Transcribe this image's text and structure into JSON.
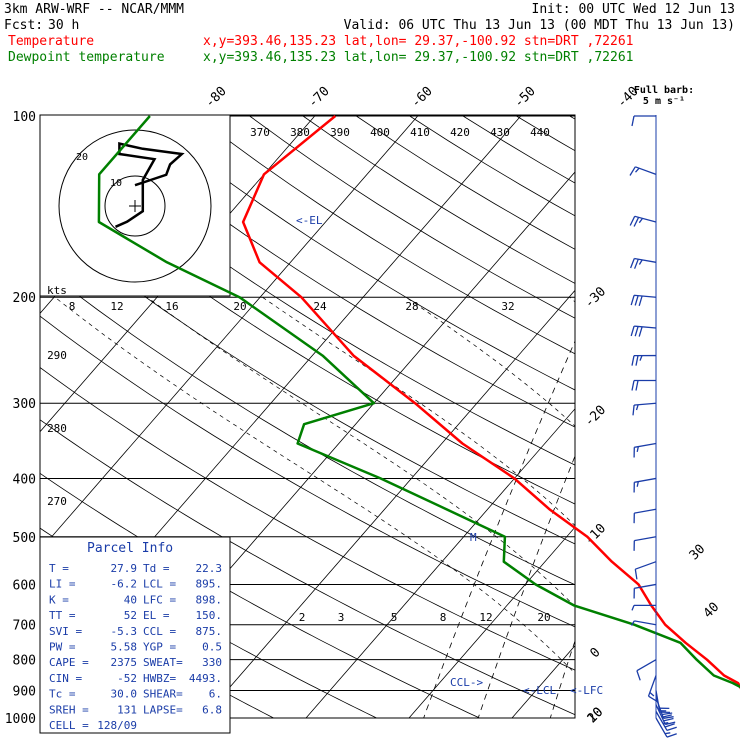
{
  "header": {
    "model": "3km ARW-WRF -- NCAR/MMM",
    "init": "Init: 00 UTC Wed 12 Jun 13",
    "fcst_label": "Fcst:",
    "fcst_value": "30 h",
    "valid": "Valid: 06 UTC Thu 13 Jun 13 (00 MDT Thu 13 Jun 13)"
  },
  "legend": [
    {
      "label": "Temperature",
      "info": "x,y=393.46,135.23   lat,lon= 29.37,-100.92  stn=DRT ,72261",
      "color": "#ff0000"
    },
    {
      "label": "Dewpoint temperature",
      "info": "x,y=393.46,135.23   lat,lon= 29.37,-100.92  stn=DRT ,72261",
      "color": "#008000"
    }
  ],
  "barb_key": {
    "line1": "Full barb:",
    "line2": "5 m s⁻¹"
  },
  "hodograph": {
    "units": "kts",
    "ring_labels": [
      "10",
      "20"
    ]
  },
  "parcel_info": {
    "title": "Parcel Info",
    "rows": [
      [
        "T  =",
        "27.9",
        "Td =",
        "22.3"
      ],
      [
        "LI =",
        "-6.2",
        "LCL =",
        "895."
      ],
      [
        "K  =",
        "40",
        "LFC =",
        "898."
      ],
      [
        "TT =",
        "52",
        "EL  =",
        "150."
      ],
      [
        "SVI =",
        "-5.3",
        "CCL =",
        "875."
      ],
      [
        "PW =",
        "5.58",
        "YGP =",
        "0.5"
      ],
      [
        "CAPE =",
        "2375",
        "SWEAT=",
        "330"
      ],
      [
        "CIN =",
        "-52",
        "HWBZ=",
        "4493."
      ],
      [
        "Tc =",
        "30.0",
        "SHEAR=",
        "6."
      ],
      [
        "SREH =",
        "131",
        "LAPSE=",
        "6.8"
      ],
      [
        "CELL =",
        "128/09",
        "",
        ""
      ]
    ]
  },
  "level_markers": {
    "el": "<-EL",
    "ccl": "CCL->",
    "lcl": "<-LCL",
    "lfc": "<-LFC",
    "m": "M"
  },
  "chart_data": {
    "type": "line",
    "title": "",
    "xlabel": "",
    "ylabel": "",
    "pressure_levels": [
      100,
      200,
      300,
      400,
      500,
      600,
      700,
      800,
      900,
      1000
    ],
    "pressure_tick_labels": [
      "100",
      "200",
      "300",
      "400",
      "500",
      "600",
      "700",
      "800",
      "900",
      "1000"
    ],
    "isotherm_labels_top": [
      "-80",
      "-70",
      "-60",
      "-50",
      "-40"
    ],
    "isotherm_labels_right": [
      "-30",
      "-20",
      "-10",
      "0",
      "10",
      "20",
      "30",
      "40"
    ],
    "theta_e_labels": [
      "370",
      "380",
      "390",
      "400",
      "410",
      "420",
      "430",
      "440"
    ],
    "mixing_ratio_labels_upper": [
      "8",
      "12",
      "16",
      "20",
      "24",
      "28",
      "32"
    ],
    "mixing_ratio_labels_lower": [
      "2",
      "3",
      "5",
      "8",
      "12",
      "20"
    ],
    "theta_labels_left": [
      "290",
      "280",
      "270"
    ],
    "series": [
      {
        "name": "Temperature",
        "color": "#ff0000",
        "p": [
          1000,
          950,
          925,
          900,
          875,
          850,
          800,
          750,
          700,
          650,
          600,
          550,
          500,
          450,
          400,
          350,
          300,
          250,
          200,
          175,
          150,
          125,
          100
        ],
        "t": [
          28.5,
          23.5,
          21,
          20,
          19,
          17,
          14,
          10.5,
          7,
          4,
          1,
          -3.5,
          -8,
          -14,
          -20,
          -28,
          -36,
          -46,
          -56,
          -63,
          -68,
          -70,
          -68
        ]
      },
      {
        "name": "Dewpoint temperature",
        "color": "#008000",
        "p": [
          1000,
          950,
          925,
          900,
          875,
          850,
          800,
          750,
          700,
          650,
          600,
          550,
          500,
          450,
          400,
          350,
          325,
          300,
          250,
          200,
          175,
          150,
          125,
          100
        ],
        "t": [
          22.5,
          21.5,
          21.5,
          20.5,
          18.5,
          16,
          13,
          10,
          4,
          -3.5,
          -9,
          -14,
          -16,
          -24,
          -33,
          -44,
          -45,
          -40,
          -49,
          -62,
          -72,
          -82,
          -86,
          -86
        ]
      }
    ],
    "wind_barbs": [
      {
        "p": 1000,
        "dir": 150,
        "speed_ms": 8
      },
      {
        "p": 975,
        "dir": 150,
        "speed_ms": 12
      },
      {
        "p": 950,
        "dir": 155,
        "speed_ms": 14
      },
      {
        "p": 925,
        "dir": 160,
        "speed_ms": 13
      },
      {
        "p": 900,
        "dir": 170,
        "speed_ms": 10
      },
      {
        "p": 850,
        "dir": 200,
        "speed_ms": 7
      },
      {
        "p": 800,
        "dir": 240,
        "speed_ms": 5
      },
      {
        "p": 700,
        "dir": 280,
        "speed_ms": 3
      },
      {
        "p": 650,
        "dir": 270,
        "speed_ms": 3
      },
      {
        "p": 600,
        "dir": 260,
        "speed_ms": 5
      },
      {
        "p": 550,
        "dir": 250,
        "speed_ms": 5
      },
      {
        "p": 500,
        "dir": 260,
        "speed_ms": 5
      },
      {
        "p": 450,
        "dir": 260,
        "speed_ms": 5
      },
      {
        "p": 400,
        "dir": 260,
        "speed_ms": 8
      },
      {
        "p": 350,
        "dir": 260,
        "speed_ms": 8
      },
      {
        "p": 300,
        "dir": 265,
        "speed_ms": 8
      },
      {
        "p": 275,
        "dir": 270,
        "speed_ms": 10
      },
      {
        "p": 250,
        "dir": 270,
        "speed_ms": 13
      },
      {
        "p": 225,
        "dir": 275,
        "speed_ms": 14
      },
      {
        "p": 200,
        "dir": 275,
        "speed_ms": 14
      },
      {
        "p": 175,
        "dir": 280,
        "speed_ms": 13
      },
      {
        "p": 150,
        "dir": 285,
        "speed_ms": 12
      },
      {
        "p": 125,
        "dir": 290,
        "speed_ms": 8
      },
      {
        "p": 100,
        "dir": 270,
        "speed_ms": 5
      }
    ],
    "hodograph_trace": [
      [
        0,
        -4
      ],
      [
        4,
        -5
      ],
      [
        8,
        -6
      ],
      [
        9,
        -8
      ],
      [
        12,
        -10
      ],
      [
        2,
        -11
      ],
      [
        -4,
        -12
      ],
      [
        -4,
        -10
      ],
      [
        5,
        -9
      ],
      [
        2,
        -5
      ],
      [
        2,
        1
      ],
      [
        -2,
        3
      ],
      [
        -5,
        4
      ]
    ]
  }
}
